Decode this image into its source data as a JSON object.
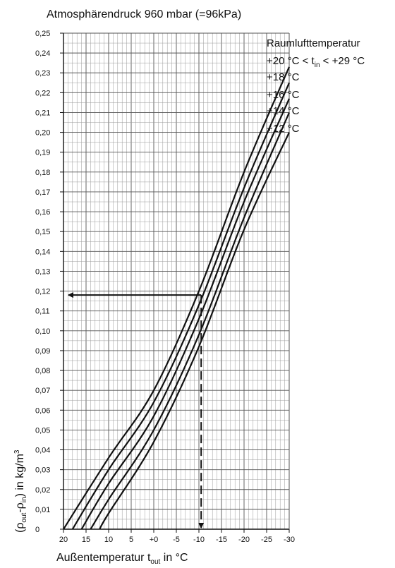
{
  "chart_data": {
    "type": "line",
    "title": "Atmosphärendruck 960 mbar (=96kPa)",
    "xlabel": {
      "main": "Außentemperatur t",
      "sub": "out",
      "tail": " in °C"
    },
    "ylabel": {
      "p1": "(ρ",
      "s1": "out",
      "p2": "-ρ",
      "s2": "in",
      "p3": ") in kg/m",
      "sup": "3"
    },
    "x_ticks": [
      "20",
      "15",
      "10",
      "5",
      "+0",
      "-5",
      "-10",
      "-15",
      "-20",
      "-25",
      "-30"
    ],
    "x_tick_values": [
      20,
      15,
      10,
      5,
      0,
      -5,
      -10,
      -15,
      -20,
      -25,
      -30
    ],
    "y_ticks": [
      "0",
      "0,01",
      "0,02",
      "0,03",
      "0,04",
      "0,05",
      "0,06",
      "0,07",
      "0,08",
      "0,09",
      "0,10",
      "0,11",
      "0,12",
      "0,13",
      "0,14",
      "0,15",
      "0,16",
      "0,17",
      "0,18",
      "0,19",
      "0,20",
      "0,21",
      "0,22",
      "0,23",
      "0,24",
      "0,25"
    ],
    "xlim": [
      20,
      -30
    ],
    "ylim": [
      0,
      0.25
    ],
    "grid": true,
    "legend_title": "Raumlufttemperatur",
    "legend": {
      "s20": {
        "a": "+20 °C < t",
        "sub": "in",
        "b": " < +29 °C"
      },
      "s18": "+18 °C",
      "s16": "+16 °C",
      "s14": "+14 °C",
      "s12": "+12 °C"
    },
    "series": [
      {
        "x": [
          20,
          10,
          0,
          -10,
          -20,
          -30
        ],
        "y": [
          0.0,
          0.036,
          0.07,
          0.12,
          0.18,
          0.233
        ]
      },
      {
        "x": [
          18,
          10,
          0,
          -10,
          -20,
          -30
        ],
        "y": [
          0.0,
          0.03,
          0.064,
          0.113,
          0.172,
          0.225
        ]
      },
      {
        "x": [
          16,
          10,
          0,
          -10,
          -20,
          -30
        ],
        "y": [
          0.0,
          0.023,
          0.057,
          0.106,
          0.165,
          0.217
        ]
      },
      {
        "x": [
          14,
          10,
          0,
          -10,
          -20,
          -30
        ],
        "y": [
          0.0,
          0.015,
          0.05,
          0.098,
          0.157,
          0.21
        ]
      },
      {
        "x": [
          12,
          10,
          0,
          -10,
          -20,
          -30
        ],
        "y": [
          0.0,
          0.008,
          0.044,
          0.092,
          0.151,
          0.2
        ]
      }
    ],
    "annotation": {
      "x": -10.5,
      "y": 0.118
    }
  }
}
